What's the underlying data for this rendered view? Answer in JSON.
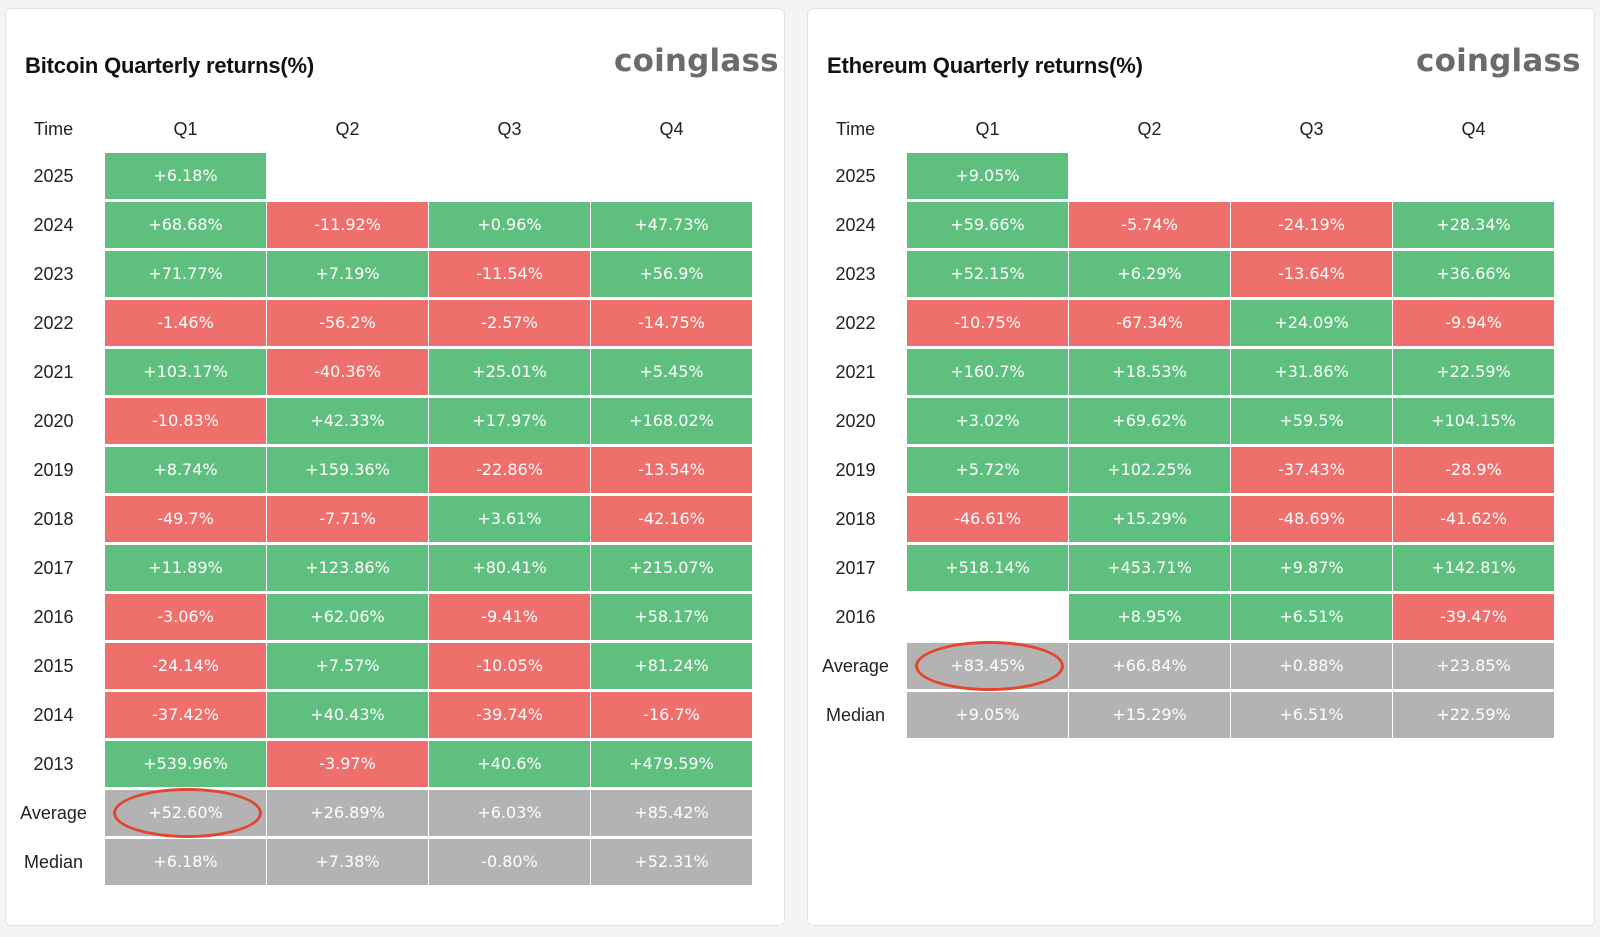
{
  "chart_data": [
    {
      "type": "table",
      "title": "Bitcoin Quarterly returns(%)",
      "brand": "coinglass",
      "columns": [
        "Time",
        "Q1",
        "Q2",
        "Q3",
        "Q4"
      ],
      "rows": [
        {
          "label": "2025",
          "values": [
            "+6.18%",
            null,
            null,
            null
          ]
        },
        {
          "label": "2024",
          "values": [
            "+68.68%",
            "-11.92%",
            "+0.96%",
            "+47.73%"
          ]
        },
        {
          "label": "2023",
          "values": [
            "+71.77%",
            "+7.19%",
            "-11.54%",
            "+56.9%"
          ]
        },
        {
          "label": "2022",
          "values": [
            "-1.46%",
            "-56.2%",
            "-2.57%",
            "-14.75%"
          ]
        },
        {
          "label": "2021",
          "values": [
            "+103.17%",
            "-40.36%",
            "+25.01%",
            "+5.45%"
          ]
        },
        {
          "label": "2020",
          "values": [
            "-10.83%",
            "+42.33%",
            "+17.97%",
            "+168.02%"
          ]
        },
        {
          "label": "2019",
          "values": [
            "+8.74%",
            "+159.36%",
            "-22.86%",
            "-13.54%"
          ]
        },
        {
          "label": "2018",
          "values": [
            "-49.7%",
            "-7.71%",
            "+3.61%",
            "-42.16%"
          ]
        },
        {
          "label": "2017",
          "values": [
            "+11.89%",
            "+123.86%",
            "+80.41%",
            "+215.07%"
          ]
        },
        {
          "label": "2016",
          "values": [
            "-3.06%",
            "+62.06%",
            "-9.41%",
            "+58.17%"
          ]
        },
        {
          "label": "2015",
          "values": [
            "-24.14%",
            "+7.57%",
            "-10.05%",
            "+81.24%"
          ]
        },
        {
          "label": "2014",
          "values": [
            "-37.42%",
            "+40.43%",
            "-39.74%",
            "-16.7%"
          ]
        },
        {
          "label": "2013",
          "values": [
            "+539.96%",
            "-3.97%",
            "+40.6%",
            "+479.59%"
          ]
        },
        {
          "label": "Average",
          "summary": true,
          "values": [
            "+52.60%",
            "+26.89%",
            "+6.03%",
            "+85.42%"
          ]
        },
        {
          "label": "Median",
          "summary": true,
          "values": [
            "+6.18%",
            "+7.38%",
            "-0.80%",
            "+52.31%"
          ]
        }
      ],
      "highlight": {
        "row": "Average",
        "column": "Q1",
        "color": "#e4452c"
      }
    },
    {
      "type": "table",
      "title": "Ethereum Quarterly returns(%)",
      "brand": "coinglass",
      "columns": [
        "Time",
        "Q1",
        "Q2",
        "Q3",
        "Q4"
      ],
      "rows": [
        {
          "label": "2025",
          "values": [
            "+9.05%",
            null,
            null,
            null
          ]
        },
        {
          "label": "2024",
          "values": [
            "+59.66%",
            "-5.74%",
            "-24.19%",
            "+28.34%"
          ]
        },
        {
          "label": "2023",
          "values": [
            "+52.15%",
            "+6.29%",
            "-13.64%",
            "+36.66%"
          ]
        },
        {
          "label": "2022",
          "values": [
            "-10.75%",
            "-67.34%",
            "+24.09%",
            "-9.94%"
          ]
        },
        {
          "label": "2021",
          "values": [
            "+160.7%",
            "+18.53%",
            "+31.86%",
            "+22.59%"
          ]
        },
        {
          "label": "2020",
          "values": [
            "+3.02%",
            "+69.62%",
            "+59.5%",
            "+104.15%"
          ]
        },
        {
          "label": "2019",
          "values": [
            "+5.72%",
            "+102.25%",
            "-37.43%",
            "-28.9%"
          ]
        },
        {
          "label": "2018",
          "values": [
            "-46.61%",
            "+15.29%",
            "-48.69%",
            "-41.62%"
          ]
        },
        {
          "label": "2017",
          "values": [
            "+518.14%",
            "+453.71%",
            "+9.87%",
            "+142.81%"
          ]
        },
        {
          "label": "2016",
          "values": [
            null,
            "+8.95%",
            "+6.51%",
            "-39.47%"
          ]
        },
        {
          "label": "Average",
          "summary": true,
          "values": [
            "+83.45%",
            "+66.84%",
            "+0.88%",
            "+23.85%"
          ]
        },
        {
          "label": "Median",
          "summary": true,
          "values": [
            "+9.05%",
            "+15.29%",
            "+6.51%",
            "+22.59%"
          ]
        }
      ],
      "highlight": {
        "row": "Average",
        "column": "Q1",
        "color": "#e4452c"
      }
    }
  ],
  "colors": {
    "positive": "#5ebf7f",
    "negative": "#ee6f6c",
    "summary": "#b3b3b3",
    "highlight_circle": "#e4452c"
  }
}
